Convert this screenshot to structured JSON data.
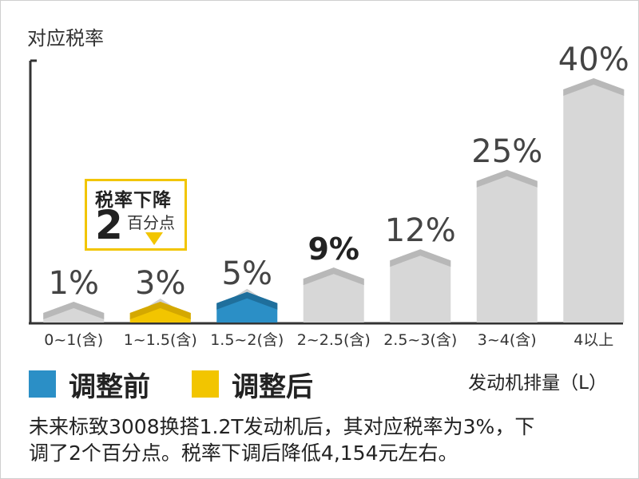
{
  "chart_data": {
    "type": "bar",
    "ylabel": "对应税率",
    "xlabel": "发动机排量（L）",
    "categories": [
      "0~1(含)",
      "1~1.5(含)",
      "1.5~2(含)",
      "2~2.5(含)",
      "2.5~3(含)",
      "3~4(含)",
      "4以上"
    ],
    "values": [
      1,
      3,
      5,
      9,
      12,
      25,
      40
    ],
    "value_labels": [
      "1%",
      "3%",
      "5%",
      "9%",
      "12%",
      "25%",
      "40%"
    ],
    "highlight": {
      "before_index": 2,
      "after_index": 1,
      "bold_label_index": 3
    },
    "ylim": [
      0,
      40
    ],
    "grid": false,
    "legend_position": "bottom-left"
  },
  "legend": {
    "before_label": "调整前",
    "after_label": "调整后",
    "before_color": "#2b8fc6",
    "after_color": "#f2c500"
  },
  "callout": {
    "title": "税率下降",
    "number": "2",
    "unit": "百分点"
  },
  "colors": {
    "bar_face": "#d7d7d7",
    "bar_cap": "#b8b8b8",
    "axis": "#333333",
    "value_label": "#444444"
  },
  "footer": {
    "line1": "未来标致3008换搭1.2T发动机后，其对应税率为3%，下",
    "line2": "调了2个百分点。税率下调后降低4,154元左右。"
  }
}
